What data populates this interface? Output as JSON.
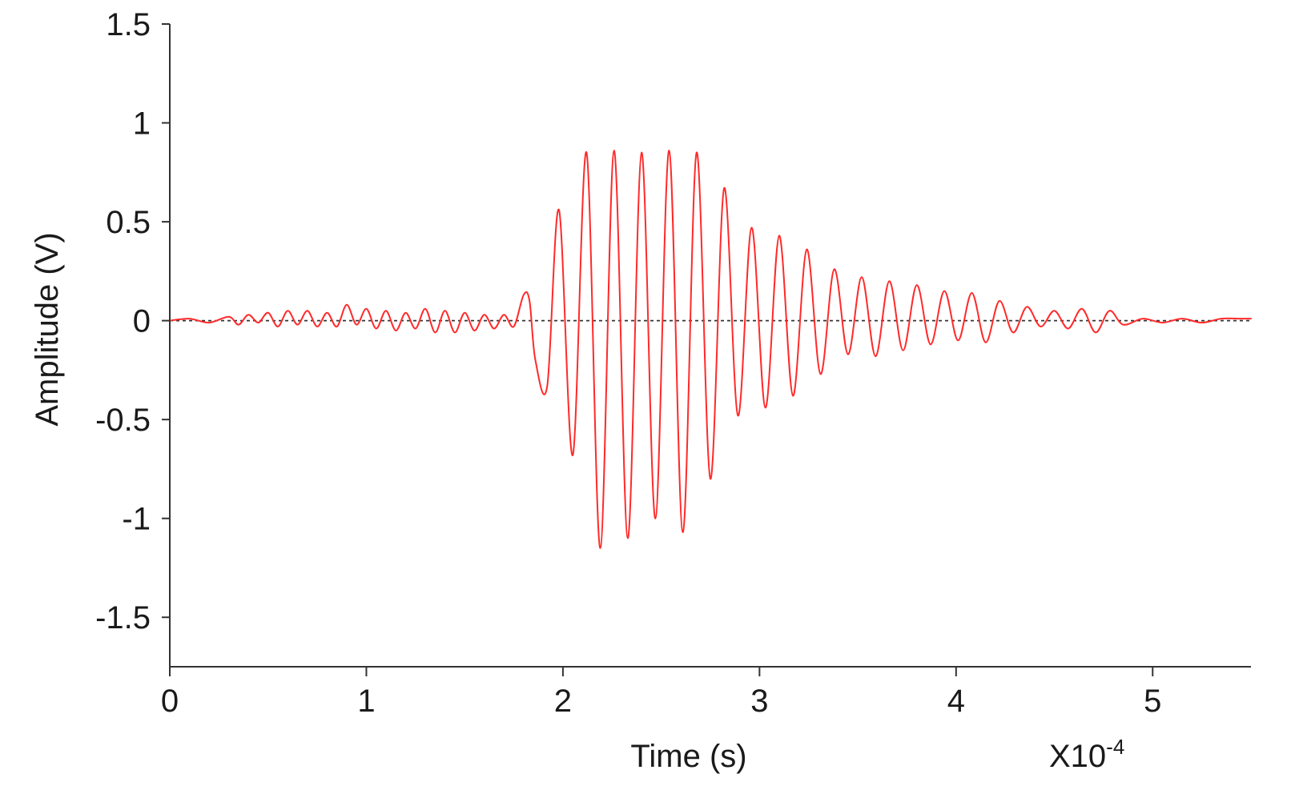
{
  "chart_data": {
    "type": "line",
    "title": "",
    "xlabel": "Time (s)",
    "ylabel": "Amplitude (V)",
    "x_multiplier_label": "X10",
    "x_multiplier_exponent": "-4",
    "xlim": [
      0,
      5.5
    ],
    "ylim": [
      -1.75,
      1.5
    ],
    "x_ticks": [
      0,
      1,
      2,
      3,
      4,
      5
    ],
    "x_tick_labels": [
      "0",
      "1",
      "2",
      "3",
      "4",
      "5"
    ],
    "y_ticks": [
      1.5,
      1,
      0.5,
      0,
      -0.5,
      -1,
      -1.5
    ],
    "y_tick_labels": [
      "1.5",
      "1",
      "0.5",
      "0",
      "-0.5",
      "-1",
      "-1.5"
    ],
    "grid": false,
    "reference_line": {
      "y": 0,
      "style": "dotted",
      "color": "#333333"
    },
    "series": [
      {
        "color": "#ff2a2a",
        "x": [
          0,
          0.1,
          0.2,
          0.3,
          0.35,
          0.4,
          0.45,
          0.5,
          0.55,
          0.6,
          0.65,
          0.7,
          0.75,
          0.8,
          0.85,
          0.9,
          0.95,
          1.0,
          1.05,
          1.1,
          1.15,
          1.2,
          1.25,
          1.3,
          1.35,
          1.4,
          1.45,
          1.5,
          1.55,
          1.6,
          1.65,
          1.7,
          1.75,
          1.8,
          1.83,
          1.86,
          1.92,
          1.98,
          2.05,
          2.12,
          2.19,
          2.26,
          2.33,
          2.4,
          2.47,
          2.54,
          2.61,
          2.68,
          2.75,
          2.82,
          2.89,
          2.96,
          3.03,
          3.1,
          3.17,
          3.24,
          3.31,
          3.38,
          3.45,
          3.52,
          3.59,
          3.66,
          3.73,
          3.8,
          3.87,
          3.94,
          4.01,
          4.08,
          4.15,
          4.22,
          4.29,
          4.36,
          4.43,
          4.5,
          4.57,
          4.64,
          4.71,
          4.78,
          4.85,
          4.95,
          5.05,
          5.15,
          5.25,
          5.35,
          5.45,
          5.5
        ],
        "y": [
          0,
          0.01,
          -0.01,
          0.02,
          -0.02,
          0.03,
          -0.01,
          0.04,
          -0.03,
          0.05,
          -0.02,
          0.05,
          -0.03,
          0.04,
          -0.03,
          0.08,
          -0.02,
          0.06,
          -0.04,
          0.05,
          -0.05,
          0.04,
          -0.04,
          0.06,
          -0.06,
          0.05,
          -0.06,
          0.04,
          -0.05,
          0.03,
          -0.04,
          0.03,
          -0.03,
          0.13,
          0.1,
          -0.2,
          -0.33,
          0.56,
          -0.68,
          0.85,
          -1.15,
          0.86,
          -1.1,
          0.85,
          -1.0,
          0.86,
          -1.07,
          0.85,
          -0.8,
          0.67,
          -0.48,
          0.47,
          -0.44,
          0.43,
          -0.38,
          0.36,
          -0.27,
          0.26,
          -0.17,
          0.22,
          -0.18,
          0.2,
          -0.15,
          0.18,
          -0.12,
          0.15,
          -0.1,
          0.14,
          -0.11,
          0.1,
          -0.06,
          0.07,
          -0.03,
          0.05,
          -0.04,
          0.06,
          -0.06,
          0.05,
          -0.02,
          0.01,
          -0.01,
          0.01,
          -0.01,
          0.01,
          0.01,
          0.01
        ]
      }
    ]
  }
}
